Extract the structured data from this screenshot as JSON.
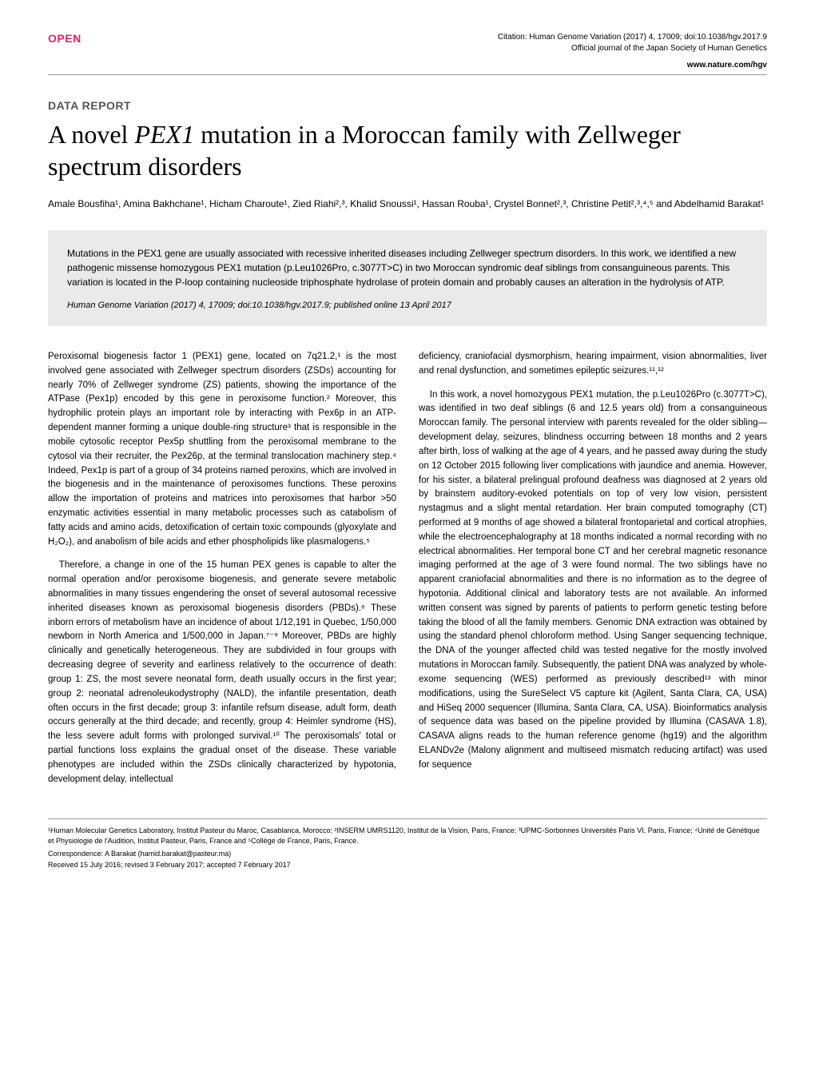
{
  "header": {
    "open_badge": "OPEN",
    "citation_line1": "Citation: Human Genome Variation (2017) 4, 17009; doi:10.1038/hgv.2017.9",
    "citation_line2": "Official journal of the Japan Society of Human Genetics",
    "journal_url": "www.nature.com/hgv"
  },
  "article": {
    "section_label": "DATA REPORT",
    "title_pre": "A novel ",
    "title_gene": "PEX1",
    "title_post": " mutation in a Moroccan family with Zellweger spectrum disorders",
    "authors": "Amale Bousfiha¹, Amina Bakhchane¹, Hicham Charoute¹, Zied Riahi²,³, Khalid Snoussi¹, Hassan Rouba¹, Crystel Bonnet²,³, Christine Petit²,³,⁴,⁵ and Abdelhamid Barakat¹"
  },
  "abstract": {
    "text": "Mutations in the PEX1 gene are usually associated with recessive inherited diseases including Zellweger spectrum disorders. In this work, we identified a new pathogenic missense homozygous PEX1 mutation (p.Leu1026Pro, c.3077T>C) in two Moroccan syndromic deaf siblings from consanguineous parents. This variation is located in the P-loop containing nucleoside triphosphate hydrolase of protein domain and probably causes an alteration in the hydrolysis of ATP.",
    "citation": "Human Genome Variation (2017) 4, 17009; doi:10.1038/hgv.2017.9; published online 13 April 2017"
  },
  "body": {
    "left": {
      "p1": "Peroxisomal biogenesis factor 1 (PEX1) gene, located on 7q21.2,¹ is the most involved gene associated with Zellweger spectrum disorders (ZSDs) accounting for nearly 70% of Zellweger syndrome (ZS) patients, showing the importance of the ATPase (Pex1p) encoded by this gene in peroxisome function.² Moreover, this hydrophilic protein plays an important role by interacting with Pex6p in an ATP-dependent manner forming a unique double-ring structure³ that is responsible in the mobile cytosolic receptor Pex5p shuttling from the peroxisomal membrane to the cytosol via their recruiter, the Pex26p, at the terminal translocation machinery step.⁴ Indeed, Pex1p is part of a group of 34 proteins named peroxins, which are involved in the biogenesis and in the maintenance of peroxisomes functions. These peroxins allow the importation of proteins and matrices into peroxisomes that harbor >50 enzymatic activities essential in many metabolic processes such as catabolism of fatty acids and amino acids, detoxification of certain toxic compounds (glyoxylate and H₂O₂), and anabolism of bile acids and ether phospholipids like plasmalogens.⁵",
      "p2": "Therefore, a change in one of the 15 human PEX genes is capable to alter the normal operation and/or peroxisome biogenesis, and generate severe metabolic abnormalities in many tissues engendering the onset of several autosomal recessive inherited diseases known as peroxisomal biogenesis disorders (PBDs).⁶ These inborn errors of metabolism have an incidence of about 1/12,191 in Quebec, 1/50,000 newborn in North America and 1/500,000 in Japan.⁷⁻⁹ Moreover, PBDs are highly clinically and genetically heterogeneous. They are subdivided in four groups with decreasing degree of severity and earliness relatively to the occurrence of death: group 1: ZS, the most severe neonatal form, death usually occurs in the first year; group 2: neonatal adrenoleukodystrophy (NALD), the infantile presentation, death often occurs in the first decade; group 3: infantile refsum disease, adult form, death occurs generally at the third decade; and recently, group 4: Heimler syndrome (HS), the less severe adult forms with prolonged survival.¹⁰ The peroxisomals' total or partial functions loss explains the gradual onset of the disease. These variable phenotypes are included within the ZSDs clinically characterized by hypotonia, development delay, intellectual"
    },
    "right": {
      "p1": "deficiency, craniofacial dysmorphism, hearing impairment, vision abnormalities, liver and renal dysfunction, and sometimes epileptic seizures.¹¹,¹²",
      "p2": "In this work, a novel homozygous PEX1 mutation, the p.Leu1026Pro (c.3077T>C), was identified in two deaf siblings (6 and 12.5 years old) from a consanguineous Moroccan family. The personal interview with parents revealed for the older sibling—development delay, seizures, blindness occurring between 18 months and 2 years after birth, loss of walking at the age of 4 years, and he passed away during the study on 12 October 2015 following liver complications with jaundice and anemia. However, for his sister, a bilateral prelingual profound deafness was diagnosed at 2 years old by brainstem auditory-evoked potentials on top of very low vision, persistent nystagmus and a slight mental retardation. Her brain computed tomography (CT) performed at 9 months of age showed a bilateral frontoparietal and cortical atrophies, while the electroencephalography at 18 months indicated a normal recording with no electrical abnormalities. Her temporal bone CT and her cerebral magnetic resonance imaging performed at the age of 3 were found normal. The two siblings have no apparent craniofacial abnormalities and there is no information as to the degree of hypotonia. Additional clinical and laboratory tests are not available. An informed written consent was signed by parents of patients to perform genetic testing before taking the blood of all the family members. Genomic DNA extraction was obtained by using the standard phenol chloroform method. Using Sanger sequencing technique, the DNA of the younger affected child was tested negative for the mostly involved mutations in Moroccan family. Subsequently, the patient DNA was analyzed by whole-exome sequencing (WES) performed as previously described¹³ with minor modifications, using the SureSelect V5 capture kit (Agilent, Santa Clara, CA, USA) and HiSeq 2000 sequencer (Illumina, Santa Clara, CA, USA). Bioinformatics analysis of sequence data was based on the pipeline provided by Illumina (CASAVA 1.8), CASAVA aligns reads to the human reference genome (hg19) and the algorithm ELANDv2e (Malony alignment and multiseed mismatch reducing artifact) was used for sequence"
    }
  },
  "footer": {
    "affiliations": "¹Human Molecular Genetics Laboratory, Institut Pasteur du Maroc, Casablanca, Morocco; ²INSERM UMRS1120, Institut de la Vision, Paris, France; ³UPMC-Sorbonnes Universités Paris VI, Paris, France; ⁴Unité de Génétique et Physiologie de l'Audition, Institut Pasteur, Paris, France and ⁵Collège de France, Paris, France.",
    "correspondence": "Correspondence: A Barakat (hamid.barakat@pasteur.ma)",
    "received": "Received 15 July 2016; revised 3 February 2017; accepted 7 February 2017"
  }
}
